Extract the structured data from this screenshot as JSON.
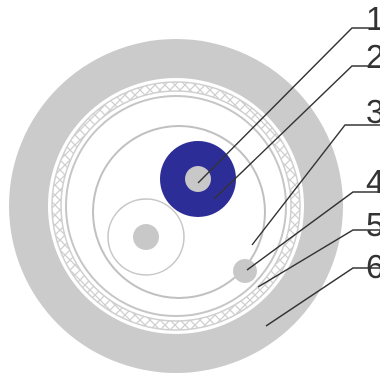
{
  "callouts": [
    {
      "label": "1",
      "part": "inner-conductor"
    },
    {
      "label": "2",
      "part": "inner-insulation"
    },
    {
      "label": "3",
      "part": "core-assembly-boundary"
    },
    {
      "label": "4",
      "part": "filler"
    },
    {
      "label": "5",
      "part": "braid-shield"
    },
    {
      "label": "6",
      "part": "outer-jacket"
    }
  ],
  "colors": {
    "jacket": "#cbcbcb",
    "braid": "#cfcfcf",
    "core_insulation": "#2d2d97",
    "conductor": "#c8c8c8",
    "outline": "#c0c0c0",
    "leader": "#333333",
    "background": "#ffffff"
  }
}
